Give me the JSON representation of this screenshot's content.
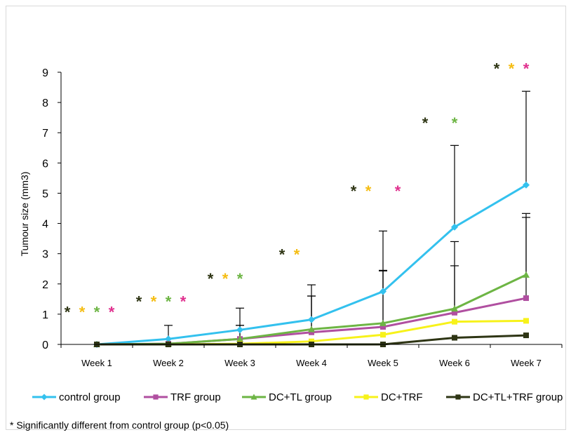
{
  "chart_data": {
    "type": "line",
    "title": "",
    "xlabel": "",
    "ylabel": "Tumour size (mm3)",
    "ylim": [
      0,
      9
    ],
    "yticks": [
      0,
      1,
      2,
      3,
      4,
      5,
      6,
      7,
      8,
      9
    ],
    "categories": [
      "Week 1",
      "Week 2",
      "Week 3",
      "Week 4",
      "Week 5",
      "Week 6",
      "Week 7"
    ],
    "grid": false,
    "legend_position": "bottom",
    "series": [
      {
        "name": "control group",
        "color": "#33c1ee",
        "marker": "diamond",
        "values": [
          0,
          0.18,
          0.48,
          0.82,
          1.75,
          3.88,
          5.27
        ],
        "error": [
          0,
          0.45,
          0.72,
          1.15,
          2.0,
          2.7,
          3.1
        ]
      },
      {
        "name": "TRF group",
        "color": "#b04fa0",
        "marker": "square",
        "values": [
          0,
          0.02,
          0.18,
          0.4,
          0.58,
          1.05,
          1.53
        ],
        "error": [
          0,
          0,
          0.45,
          1.2,
          1.85,
          2.35,
          2.8
        ]
      },
      {
        "name": "DC+TL group",
        "color": "#6db544",
        "marker": "triangle",
        "values": [
          0,
          0.02,
          0.18,
          0.5,
          0.7,
          1.18,
          2.3
        ],
        "error": [
          0,
          0,
          0.45,
          1.1,
          1.75,
          1.42,
          1.9
        ]
      },
      {
        "name": "DC+TRF",
        "color": "#f7f21a",
        "marker": "square",
        "values": [
          0,
          0,
          0.02,
          0.1,
          0.32,
          0.75,
          0.78
        ],
        "error": [
          0,
          0,
          0,
          0,
          0,
          0,
          0
        ]
      },
      {
        "name": "DC+TL+TRF group",
        "color": "#2e3514",
        "marker": "square",
        "values": [
          0,
          0,
          0,
          0,
          0,
          0.22,
          0.3
        ],
        "error": [
          0,
          0,
          0,
          0,
          0,
          0,
          0
        ]
      }
    ],
    "significance_markers": [
      {
        "category": "Week 1",
        "y": 1.1,
        "marks": [
          {
            "text": "*",
            "color": "#2e3514"
          },
          {
            "text": "*",
            "color": "#f5bd13"
          },
          {
            "text": "*",
            "color": "#6db544"
          },
          {
            "text": "*",
            "color": "#e0308e"
          }
        ]
      },
      {
        "category": "Week 2",
        "y": 1.45,
        "marks": [
          {
            "text": "*",
            "color": "#2e3514"
          },
          {
            "text": "*",
            "color": "#f5bd13"
          },
          {
            "text": "*",
            "color": "#6db544"
          },
          {
            "text": "*",
            "color": "#e0308e"
          }
        ]
      },
      {
        "category": "Week 3",
        "y": 2.2,
        "marks": [
          {
            "text": "*",
            "color": "#2e3514"
          },
          {
            "text": "*",
            "color": "#f5bd13"
          },
          {
            "text": "*",
            "color": "#6db544"
          }
        ]
      },
      {
        "category": "Week 4",
        "y": 3.0,
        "marks": [
          {
            "text": "*",
            "color": "#2e3514"
          },
          {
            "text": "*",
            "color": "#f5bd13"
          }
        ]
      },
      {
        "category": "Week 5",
        "y": 5.1,
        "marks": [
          {
            "text": "*",
            "color": "#2e3514"
          },
          {
            "text": "*",
            "color": "#f5bd13"
          },
          {
            "text": "",
            "color": "#ffffff"
          },
          {
            "text": "*",
            "color": "#e0308e"
          }
        ]
      },
      {
        "category": "Week 6",
        "y": 7.35,
        "marks": [
          {
            "text": "*",
            "color": "#2e3514"
          },
          {
            "text": "",
            "color": "#ffffff"
          },
          {
            "text": "*",
            "color": "#6db544"
          }
        ]
      },
      {
        "category": "Week 7",
        "y": 9.15,
        "marks": [
          {
            "text": "*",
            "color": "#2e3514"
          },
          {
            "text": "*",
            "color": "#f5bd13"
          },
          {
            "text": "*",
            "color": "#e0308e"
          }
        ]
      }
    ],
    "footnote": "* Significantly different from control group (p<0.05)"
  }
}
